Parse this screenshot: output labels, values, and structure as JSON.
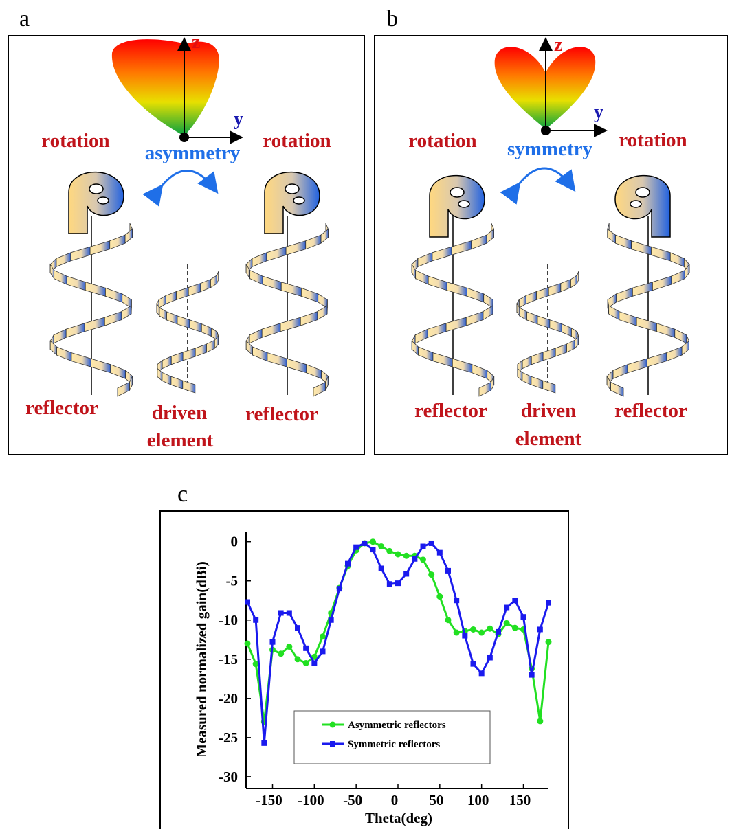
{
  "panels": [
    {
      "label": "a",
      "z": "z",
      "y": "y",
      "left_top": "rotation",
      "right_top": "rotation",
      "center": "asymmetry",
      "left_bottom": "reflector",
      "driven": "driven",
      "element": "element",
      "right_bottom": "reflector"
    },
    {
      "label": "b",
      "z": "z",
      "y": "y",
      "left_top": "rotation",
      "right_top": "rotation",
      "center": "symmetry",
      "left_bottom": "reflector",
      "driven": "driven",
      "element": "element",
      "right_bottom": "reflector"
    }
  ],
  "panel_c_label": "c",
  "chart_data": {
    "type": "line",
    "xlabel": "Theta(deg)",
    "ylabel": "Measured normalized gain(dBi)",
    "x": [
      -180,
      -170,
      -160,
      -150,
      -140,
      -130,
      -120,
      -110,
      -100,
      -90,
      -80,
      -70,
      -60,
      -50,
      -40,
      -30,
      -20,
      -10,
      0,
      10,
      20,
      30,
      40,
      50,
      60,
      70,
      80,
      90,
      100,
      110,
      120,
      130,
      140,
      150,
      160,
      170,
      180
    ],
    "series": [
      {
        "name": "Asymmetric reflectors",
        "color": "#22e022",
        "marker": "circle",
        "values": [
          -13,
          -15.6,
          -23,
          -13.8,
          -14.3,
          -13.4,
          -15,
          -15.5,
          -14.7,
          -12.1,
          -9.1,
          -5.9,
          -3.1,
          -1.1,
          -0.2,
          0,
          -0.6,
          -1.2,
          -1.6,
          -1.8,
          -1.8,
          -2.3,
          -4.2,
          -7,
          -10,
          -11.6,
          -11.4,
          -11.2,
          -11.6,
          -11.1,
          -11.8,
          -10.4,
          -11,
          -11.2,
          -16.2,
          -22.9,
          -12.8
        ]
      },
      {
        "name": "Symmetric reflectors",
        "color": "#1a1aee",
        "marker": "square",
        "values": [
          -7.7,
          -10,
          -25.7,
          -12.8,
          -9.1,
          -9.1,
          -11,
          -13.6,
          -15.5,
          -14,
          -10,
          -6,
          -2.8,
          -0.7,
          -0.2,
          -1,
          -3.4,
          -5.4,
          -5.3,
          -4.1,
          -2.2,
          -0.6,
          -0.2,
          -1.4,
          -3.7,
          -7.5,
          -12,
          -15.6,
          -16.8,
          -14.8,
          -11.5,
          -8.4,
          -7.5,
          -9.6,
          -17,
          -11.2,
          -7.8
        ]
      }
    ],
    "xlim": [
      -180,
      180
    ],
    "xticks": [
      -150,
      -100,
      -50,
      0,
      50,
      100,
      150
    ],
    "ylim": [
      -31.5,
      1.2
    ],
    "yticks": [
      0,
      -5,
      -10,
      -15,
      -20,
      -25,
      -30
    ],
    "grid": false
  }
}
